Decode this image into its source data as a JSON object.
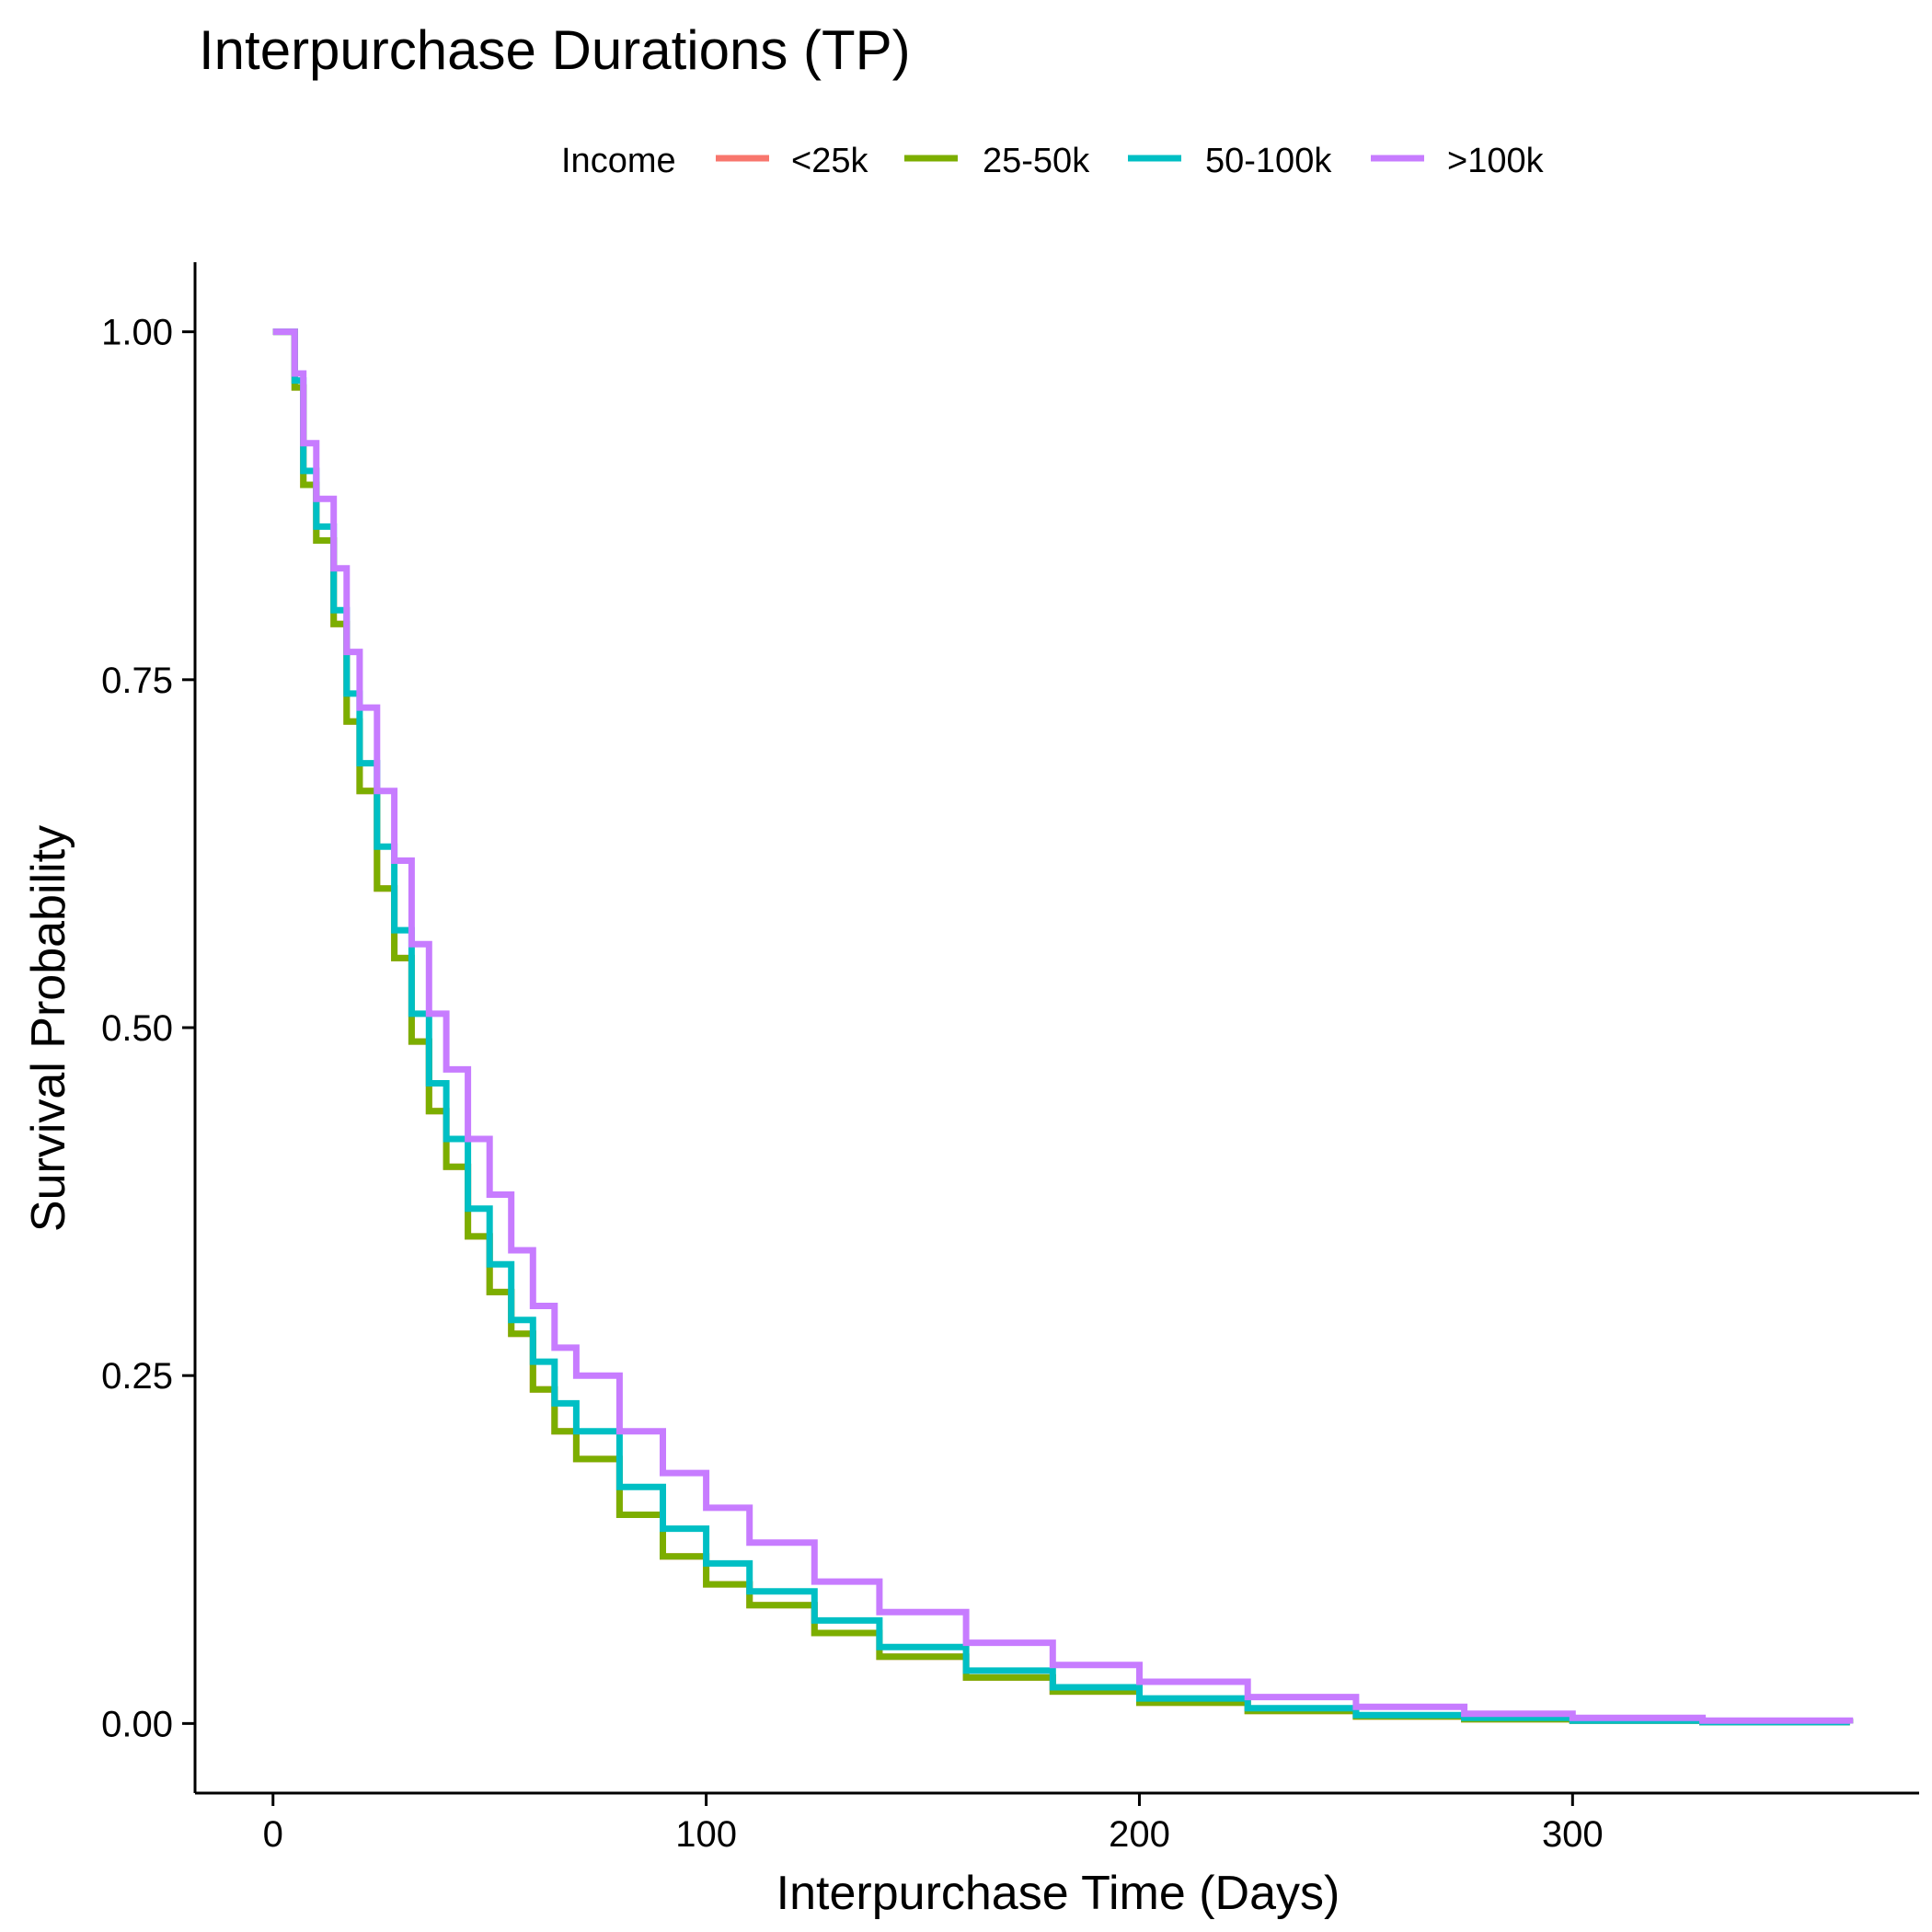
{
  "chart_data": {
    "type": "line",
    "title": "Interpurchase Durations (TP)",
    "xlabel": "Interpurchase Time (Days)",
    "ylabel": "Survival Probability",
    "xlim": [
      -18,
      380
    ],
    "ylim": [
      -0.05,
      1.05
    ],
    "x_ticks": [
      0,
      100,
      200,
      300
    ],
    "y_ticks": [
      0.0,
      0.25,
      0.5,
      0.75,
      1.0
    ],
    "x_tick_labels": [
      "0",
      "100",
      "200",
      "300"
    ],
    "y_tick_labels": [
      "0.00",
      "0.25",
      "0.50",
      "0.75",
      "1.00"
    ],
    "grid": false,
    "step": true,
    "legend": {
      "title": "Income",
      "position": "top",
      "entries": [
        "<25k",
        "25-50k",
        "50-100k",
        ">100k"
      ]
    },
    "series": [
      {
        "name": "<25k",
        "color": "#F8766D",
        "x": [
          0,
          5,
          7,
          10,
          14,
          17,
          20,
          24,
          28,
          32,
          36,
          40,
          45,
          50,
          55,
          60,
          65,
          70,
          80,
          90,
          100,
          110,
          125,
          140,
          160,
          180,
          200,
          225,
          250,
          275,
          300,
          330,
          364
        ],
        "y": [
          1.0,
          0.96,
          0.89,
          0.85,
          0.79,
          0.72,
          0.67,
          0.6,
          0.55,
          0.49,
          0.44,
          0.4,
          0.35,
          0.31,
          0.28,
          0.24,
          0.21,
          0.19,
          0.15,
          0.12,
          0.1,
          0.085,
          0.065,
          0.048,
          0.033,
          0.023,
          0.015,
          0.009,
          0.005,
          0.003,
          0.002,
          0.001,
          0.0
        ]
      },
      {
        "name": "25-50k",
        "color": "#7CAE00",
        "x": [
          0,
          5,
          7,
          10,
          14,
          17,
          20,
          24,
          28,
          32,
          36,
          40,
          45,
          50,
          55,
          60,
          65,
          70,
          80,
          90,
          100,
          110,
          125,
          140,
          160,
          180,
          200,
          225,
          250,
          275,
          300,
          330,
          364
        ],
        "y": [
          1.0,
          0.96,
          0.89,
          0.85,
          0.79,
          0.72,
          0.67,
          0.6,
          0.55,
          0.49,
          0.44,
          0.4,
          0.35,
          0.31,
          0.28,
          0.24,
          0.21,
          0.19,
          0.15,
          0.12,
          0.1,
          0.085,
          0.065,
          0.048,
          0.033,
          0.023,
          0.015,
          0.009,
          0.005,
          0.003,
          0.002,
          0.001,
          0.0
        ]
      },
      {
        "name": "50-100k",
        "color": "#00BFC4",
        "x": [
          0,
          5,
          7,
          10,
          14,
          17,
          20,
          24,
          28,
          32,
          36,
          40,
          45,
          50,
          55,
          60,
          65,
          70,
          80,
          90,
          100,
          110,
          125,
          140,
          160,
          180,
          200,
          225,
          250,
          275,
          300,
          330,
          364
        ],
        "y": [
          1.0,
          0.965,
          0.9,
          0.86,
          0.8,
          0.74,
          0.69,
          0.63,
          0.57,
          0.51,
          0.46,
          0.42,
          0.37,
          0.33,
          0.29,
          0.26,
          0.23,
          0.21,
          0.17,
          0.14,
          0.115,
          0.095,
          0.074,
          0.055,
          0.038,
          0.026,
          0.018,
          0.011,
          0.006,
          0.004,
          0.002,
          0.001,
          0.0
        ]
      },
      {
        "name": ">100k",
        "color": "#C77CFF",
        "x": [
          0,
          5,
          7,
          10,
          14,
          17,
          20,
          24,
          28,
          32,
          36,
          40,
          45,
          50,
          55,
          60,
          65,
          70,
          80,
          90,
          100,
          110,
          125,
          140,
          160,
          180,
          200,
          225,
          250,
          275,
          300,
          330,
          364
        ],
        "y": [
          1.0,
          0.97,
          0.92,
          0.88,
          0.83,
          0.77,
          0.73,
          0.67,
          0.62,
          0.56,
          0.51,
          0.47,
          0.42,
          0.38,
          0.34,
          0.3,
          0.27,
          0.25,
          0.21,
          0.18,
          0.155,
          0.13,
          0.102,
          0.08,
          0.058,
          0.042,
          0.03,
          0.019,
          0.012,
          0.007,
          0.004,
          0.002,
          0.0
        ]
      }
    ]
  }
}
